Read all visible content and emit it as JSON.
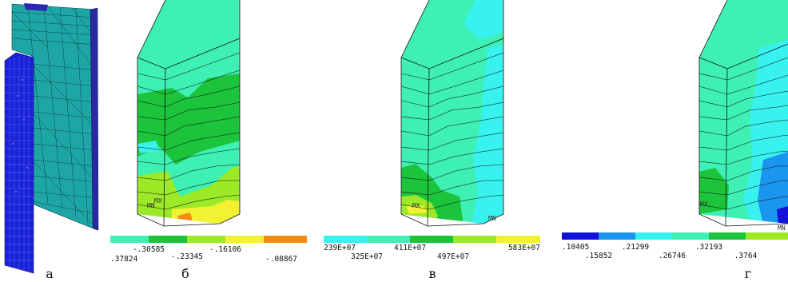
{
  "panels": [
    {
      "caption": "а"
    },
    {
      "caption": "б",
      "min_label": "MN",
      "max_label": "MX",
      "legend": {
        "colors": [
          "#3ef0b4",
          "#1cc43b",
          "#9cea26",
          "#f2f232",
          "#f58c12"
        ],
        "top_ticks": [
          "-.30585",
          "-.16106"
        ],
        "bottom_ticks": [
          ".37824",
          "-.23345",
          "-.08867"
        ]
      }
    },
    {
      "caption": "в",
      "min_label": "MN",
      "max_label": "MX",
      "legend": {
        "colors": [
          "#37f2ef",
          "#3ef0b4",
          "#1cc43b",
          "#9cea26",
          "#f2f232"
        ],
        "top_ticks": [
          "411E+07",
          "583E+07"
        ],
        "bottom_ticks": [
          "239E+07",
          "325E+07",
          "497E+07"
        ]
      }
    },
    {
      "caption": "г",
      "min_label": "MN",
      "max_label": "MX",
      "legend": {
        "colors": [
          "#1212d8",
          "#1b96ee",
          "#37f2ef",
          "#3ef0b4",
          "#1cc43b",
          "#9cea26"
        ],
        "top_ticks": [
          ".21299",
          ".32193"
        ],
        "bottom_ticks": [
          ".10405",
          ".15852",
          ".26746",
          ".3764"
        ]
      }
    }
  ]
}
